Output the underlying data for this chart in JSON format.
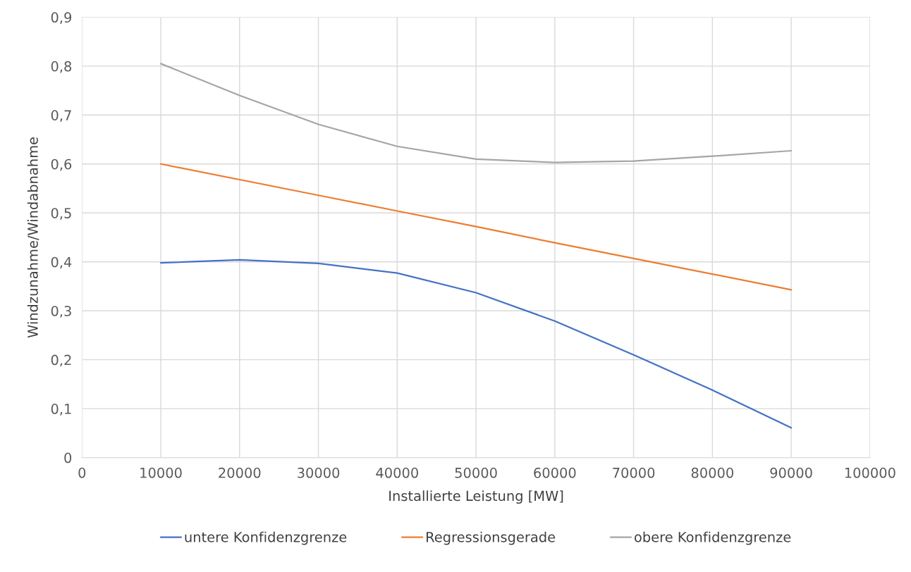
{
  "chart_data": {
    "type": "line",
    "xlabel": "Installierte Leistung [MW]",
    "ylabel": "Windzunahme/Windabnahme",
    "x": [
      10000,
      20000,
      30000,
      40000,
      50000,
      60000,
      70000,
      80000,
      90000
    ],
    "series": [
      {
        "name": "untere Konfidenzgrenze",
        "color": "#4472c4",
        "values": [
          0.398,
          0.404,
          0.397,
          0.377,
          0.337,
          0.279,
          0.21,
          0.138,
          0.061
        ]
      },
      {
        "name": "Regressionsgerade",
        "color": "#ed7d31",
        "values": [
          0.6,
          0.568,
          0.536,
          0.504,
          0.472,
          0.439,
          0.407,
          0.375,
          0.343
        ]
      },
      {
        "name": "obere Konfidenzgrenze",
        "color": "#a5a5a5",
        "values": [
          0.805,
          0.74,
          0.681,
          0.636,
          0.61,
          0.603,
          0.606,
          0.616,
          0.627
        ]
      }
    ],
    "xlim": [
      0,
      100000
    ],
    "xticks": [
      0,
      10000,
      20000,
      30000,
      40000,
      50000,
      60000,
      70000,
      80000,
      90000,
      100000
    ],
    "ylim": [
      0,
      0.9
    ],
    "yticks": [
      0,
      {
        "value": 0.1,
        "label": "0,1"
      },
      {
        "value": 0.2,
        "label": "0,2"
      },
      {
        "value": 0.3,
        "label": "0,3"
      },
      {
        "value": 0.4,
        "label": "0,4"
      },
      {
        "value": 0.5,
        "label": "0,5"
      },
      {
        "value": 0.6,
        "label": "0,6"
      },
      {
        "value": 0.7,
        "label": "0,7"
      },
      {
        "value": 0.8,
        "label": "0,8"
      },
      {
        "value": 0.9,
        "label": "0,9"
      }
    ],
    "grid": true,
    "legend": "bottom"
  }
}
